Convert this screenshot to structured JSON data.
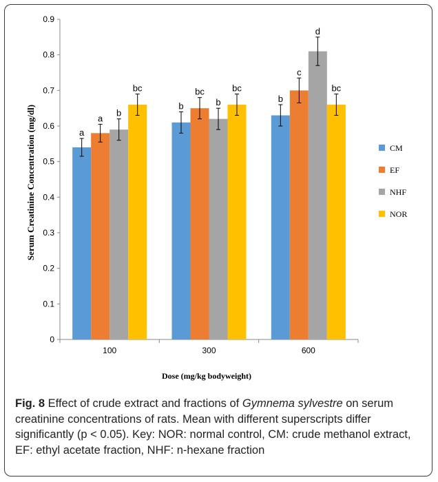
{
  "chart_data": {
    "type": "bar",
    "categories": [
      "100",
      "300",
      "600"
    ],
    "series": [
      {
        "name": "CM",
        "values": [
          0.54,
          0.61,
          0.63
        ],
        "errors": [
          0.025,
          0.03,
          0.03
        ],
        "letters": [
          "a",
          "b",
          "b"
        ]
      },
      {
        "name": "EF",
        "values": [
          0.58,
          0.65,
          0.7
        ],
        "errors": [
          0.025,
          0.03,
          0.035
        ],
        "letters": [
          "a",
          "bc",
          "c"
        ]
      },
      {
        "name": "NHF",
        "values": [
          0.59,
          0.62,
          0.81
        ],
        "errors": [
          0.03,
          0.03,
          0.04
        ],
        "letters": [
          "b",
          "b",
          "d"
        ]
      },
      {
        "name": "NOR",
        "values": [
          0.66,
          0.66,
          0.66
        ],
        "errors": [
          0.03,
          0.03,
          0.03
        ],
        "letters": [
          "bc",
          "bc",
          "bc"
        ]
      }
    ],
    "colors": [
      "#5b9bd5",
      "#ed7d31",
      "#a5a5a5",
      "#ffc000"
    ],
    "title": "",
    "xlabel": "Dose (mg/kg bodyweight)",
    "ylabel": "Serum Creatinine Concentration (mg/dl)",
    "ylim": [
      0,
      0.9
    ],
    "yticks": [
      "0",
      "0.1",
      "0.2",
      "0.3",
      "0.4",
      "0.5",
      "0.6",
      "0.7",
      "0.8",
      "0.9"
    ],
    "grid": false,
    "legend_position": "right",
    "error_bars": true
  },
  "caption": {
    "fig_label": "Fig. 8",
    "text_before": " Effect of crude extract and fractions of ",
    "species": "Gymnema sylvestre",
    "text_after": " on serum creatinine concentrations of rats. Mean with different superscripts differ significantly (p < 0.05). Key: NOR: normal control, CM: crude methanol extract, EF: ethyl acetate fraction, NHF: n-hexane fraction"
  }
}
